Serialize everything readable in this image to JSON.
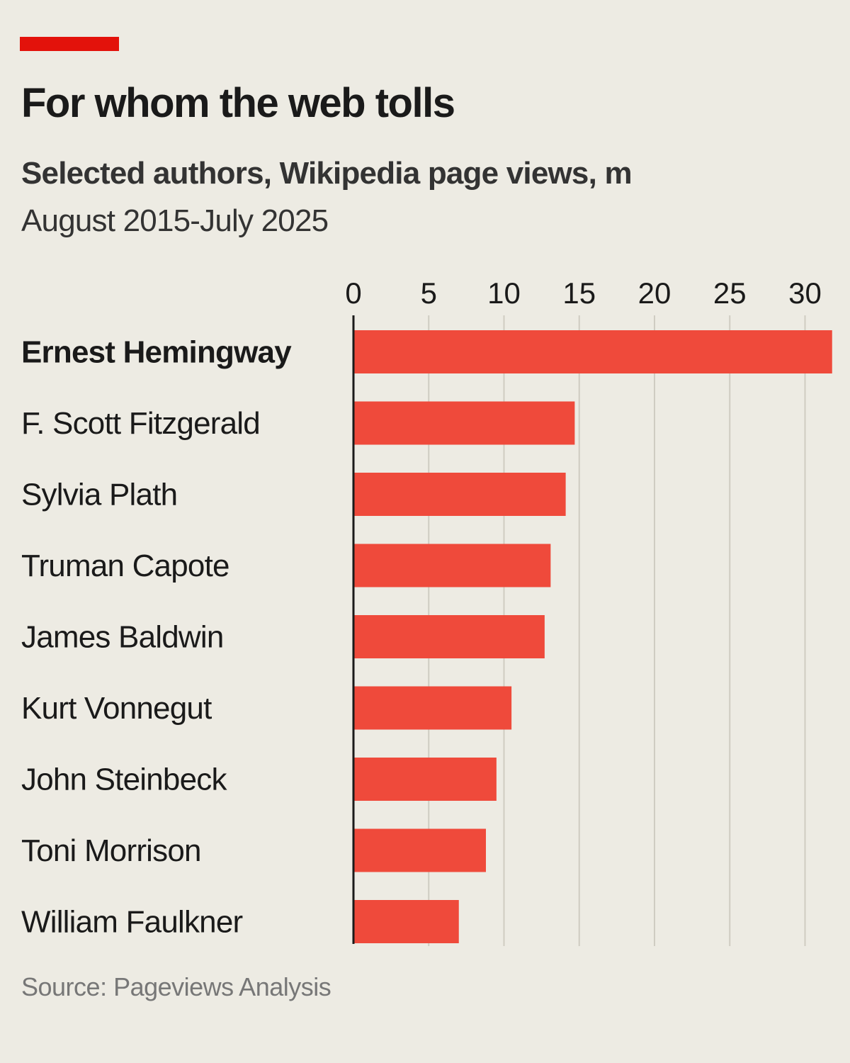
{
  "header": {
    "title": "For whom the web tolls",
    "subtitle": "Selected authors, Wikipedia page views, m",
    "period": "August 2015-July 2025"
  },
  "source": "Source: Pageviews Analysis",
  "colors": {
    "accent": "#e3120b",
    "bar": "#ef4a3b",
    "background": "#edebe3",
    "grid": "#cfccc2",
    "axis": "#1a1a1a"
  },
  "chart_data": {
    "type": "bar",
    "orientation": "horizontal",
    "title": "For whom the web tolls",
    "subtitle": "Selected authors, Wikipedia page views, m",
    "xlim": [
      0,
      32
    ],
    "xticks": [
      0,
      5,
      10,
      15,
      20,
      25,
      30
    ],
    "tick_position": "top",
    "grid": true,
    "highlighted_category": "Ernest Hemingway",
    "categories": [
      "Ernest Hemingway",
      "F. Scott Fitzgerald",
      "Sylvia Plath",
      "Truman Capote",
      "James Baldwin",
      "Kurt Vonnegut",
      "John Steinbeck",
      "Toni Morrison",
      "William Faulkner"
    ],
    "values": [
      31.8,
      14.7,
      14.1,
      13.1,
      12.7,
      10.5,
      9.5,
      8.8,
      7.0
    ]
  }
}
